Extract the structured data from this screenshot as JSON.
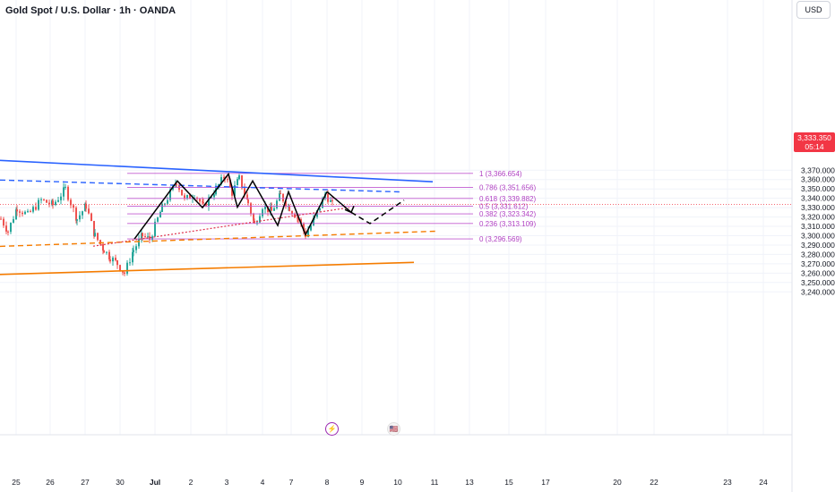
{
  "header": {
    "title": "Gold Spot / U.S. Dollar · 1h · OANDA",
    "currency": "USD"
  },
  "current_price": {
    "price": "3,333.350",
    "countdown": "05:14",
    "value": 3333.35,
    "color": "#f23645"
  },
  "colors": {
    "up": "#26a69a",
    "down": "#ef5350",
    "fib": "#c25bd0",
    "fib_text": "#b03fc2",
    "channel_blue": "#2962ff",
    "channel_orange": "#f57c00",
    "projection": "#000000",
    "red_dotted": "#e0334f"
  },
  "events": [
    {
      "icon": "bolt-icon",
      "glyph": "⚡"
    },
    {
      "icon": "us-flag-icon",
      "glyph": "🇺🇸"
    }
  ],
  "chart_data": {
    "type": "candlestick",
    "symbol": "Gold Spot / U.S. Dollar",
    "interval": "1h",
    "yaxis": {
      "ticks": [
        3240,
        3250,
        3260,
        3270,
        3280,
        3290,
        3300,
        3310,
        3320,
        3330,
        3340,
        3350,
        3360,
        3370
      ],
      "tick_labels": [
        "3,240.000",
        "3,250.000",
        "3,260.000",
        "3,270.000",
        "3,280.000",
        "3,290.000",
        "3,300.000",
        "3,310.000",
        "3,320.000",
        "3,330.000",
        "3,340.000",
        "3,350.000",
        "3,360.000",
        "3,370.000"
      ],
      "range": [
        3236,
        3375
      ]
    },
    "xaxis": {
      "labels": [
        "25",
        "26",
        "27",
        "30",
        "Jul",
        "2",
        "3",
        "4",
        "7",
        "8",
        "9",
        "10",
        "11",
        "13",
        "15",
        "17",
        "20",
        "22",
        "23",
        "24"
      ],
      "bold": [
        "Jul"
      ]
    },
    "fibonacci": [
      {
        "ratio": "1",
        "value": 3366.654,
        "label": "1 (3,366.654)"
      },
      {
        "ratio": "0.786",
        "value": 3351.656,
        "label": "0.786 (3,351.656)"
      },
      {
        "ratio": "0.618",
        "value": 3339.882,
        "label": "0.618 (3,339.882)"
      },
      {
        "ratio": "0.5",
        "value": 3331.612,
        "label": "0.5 (3,331.612)"
      },
      {
        "ratio": "0.382",
        "value": 3323.342,
        "label": "0.382 (3,323.342)"
      },
      {
        "ratio": "0.236",
        "value": 3313.109,
        "label": "0.236 (3,313.109)"
      },
      {
        "ratio": "0",
        "value": 3296.569,
        "label": "0 (3,296.569)"
      }
    ],
    "zigzag_pattern": [
      {
        "date": "Jun 30",
        "price": 3296.5
      },
      {
        "date": "Jul 1",
        "price": 3358.5
      },
      {
        "date": "Jul 1",
        "price": 3330.0
      },
      {
        "date": "Jul 3",
        "price": 3366.0
      },
      {
        "date": "Jul 3",
        "price": 3330.5
      },
      {
        "date": "Jul 3",
        "price": 3358.5
      },
      {
        "date": "Jul 4",
        "price": 3311.0
      },
      {
        "date": "Jul 4",
        "price": 3347.0
      },
      {
        "date": "Jul 7",
        "price": 3301.0
      },
      {
        "date": "Jul 8",
        "price": 3347.0
      }
    ],
    "projection": [
      {
        "date": "Jul 8",
        "price": 3347.0,
        "style": "solid"
      },
      {
        "date": "Jul 8",
        "price": 3325.0,
        "style": "solid"
      },
      {
        "date": "Jul 9",
        "price": 3313.0,
        "style": "dashed"
      },
      {
        "date": "Jul 10",
        "price": 3338.0,
        "style": "dashed"
      }
    ]
  }
}
